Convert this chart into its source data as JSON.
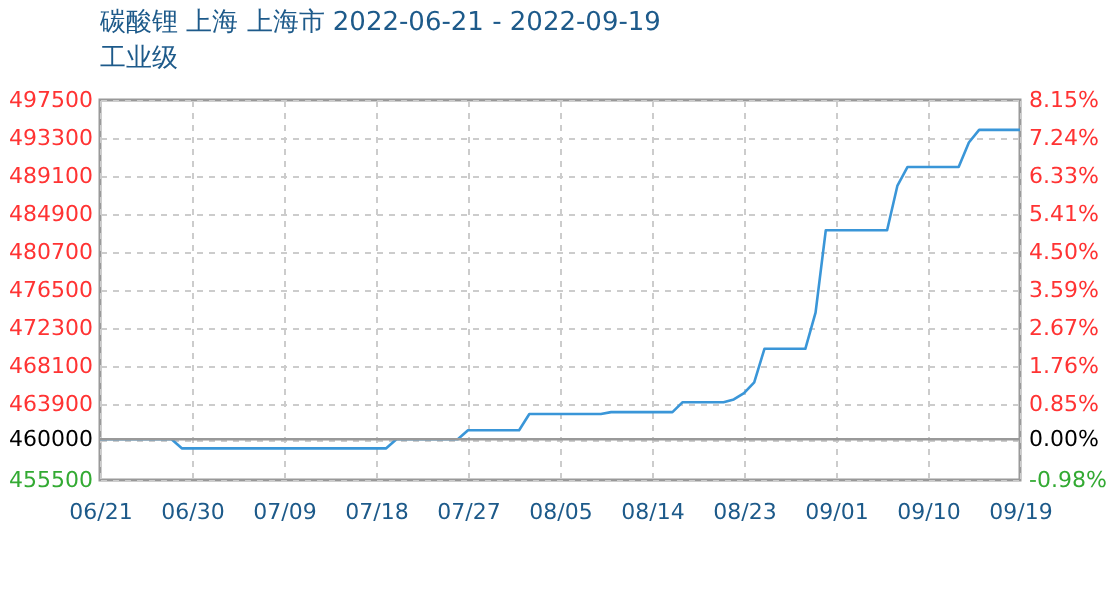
{
  "chart_data": {
    "type": "line",
    "title": "碳酸锂 上海 上海市 2022-06-21 - 2022-09-19",
    "subtitle": "工业级",
    "x": [
      "2022-06-21",
      "2022-06-28",
      "2022-06-29",
      "2022-07-19",
      "2022-07-20",
      "2022-07-26",
      "2022-07-27",
      "2022-08-01",
      "2022-08-02",
      "2022-08-09",
      "2022-08-10",
      "2022-08-16",
      "2022-08-17",
      "2022-08-21",
      "2022-08-22",
      "2022-08-23",
      "2022-08-24",
      "2022-08-25",
      "2022-08-29",
      "2022-08-30",
      "2022-08-31",
      "2022-09-06",
      "2022-09-07",
      "2022-09-08",
      "2022-09-13",
      "2022-09-14",
      "2022-09-15",
      "2022-09-19"
    ],
    "series": [
      {
        "color": "#3a96d8",
        "values": [
          460000,
          460000,
          459000,
          459000,
          460000,
          460000,
          461000,
          461000,
          462800,
          462800,
          463000,
          463000,
          464100,
          464100,
          464400,
          465100,
          466300,
          470000,
          470000,
          474000,
          483100,
          483100,
          488000,
          490100,
          490100,
          492800,
          494200,
          494200
        ]
      }
    ],
    "xlim": [
      "2022-06-21",
      "2022-09-19"
    ],
    "xticks": [
      {
        "value": "2022-06-21",
        "label": "06/21"
      },
      {
        "value": "2022-06-30",
        "label": "06/30"
      },
      {
        "value": "2022-07-09",
        "label": "07/09"
      },
      {
        "value": "2022-07-18",
        "label": "07/18"
      },
      {
        "value": "2022-07-27",
        "label": "07/27"
      },
      {
        "value": "2022-08-05",
        "label": "08/05"
      },
      {
        "value": "2022-08-14",
        "label": "08/14"
      },
      {
        "value": "2022-08-23",
        "label": "08/23"
      },
      {
        "value": "2022-09-01",
        "label": "09/01"
      },
      {
        "value": "2022-09-10",
        "label": "09/10"
      },
      {
        "value": "2022-09-19",
        "label": "09/19"
      }
    ],
    "ylim": [
      455500,
      497500
    ],
    "yticks": [
      455500,
      460000,
      463900,
      468100,
      472300,
      476500,
      480700,
      484900,
      489100,
      493300,
      497500
    ],
    "y2lim": [
      -0.98,
      8.15
    ],
    "y2ticks": [
      {
        "value": -0.98,
        "label": "-0.98%"
      },
      {
        "value": 0,
        "label": "0.00%"
      },
      {
        "value": 0.85,
        "label": "0.85%"
      },
      {
        "value": 1.76,
        "label": "1.76%"
      },
      {
        "value": 2.67,
        "label": "2.67%"
      },
      {
        "value": 3.59,
        "label": "3.59%"
      },
      {
        "value": 4.5,
        "label": "4.50%"
      },
      {
        "value": 5.41,
        "label": "5.41%"
      },
      {
        "value": 6.33,
        "label": "6.33%"
      },
      {
        "value": 7.24,
        "label": "7.24%"
      },
      {
        "value": 8.15,
        "label": "8.15%"
      }
    ],
    "ref_lines": [
      {
        "axis": "y",
        "value": 460000,
        "color": "#999999"
      }
    ],
    "grid": true,
    "marker": "none",
    "line_style": "solid"
  }
}
